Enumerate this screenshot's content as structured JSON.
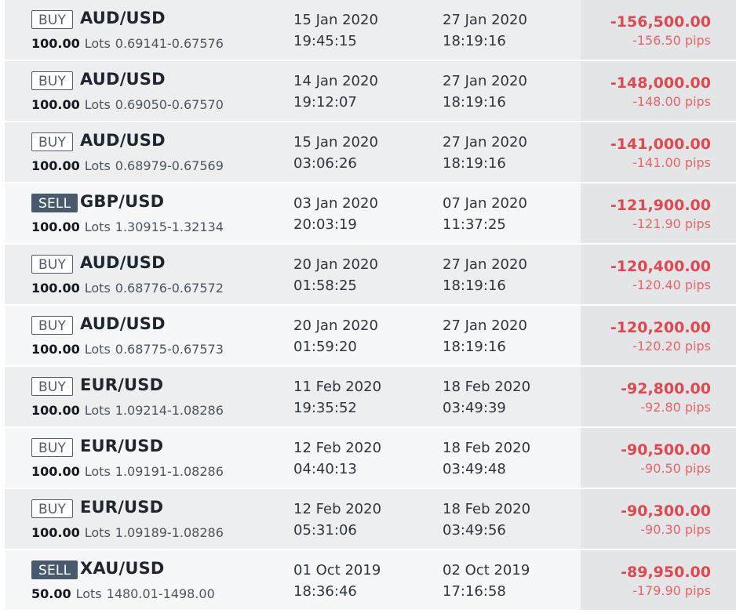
{
  "trades": [
    {
      "side": "BUY",
      "symbol": "AUD/USD",
      "lots": "100.00",
      "lots_unit": "Lots",
      "range": "0.69141-0.67576",
      "open_date": "15 Jan 2020",
      "open_time": "19:45:15",
      "close_date": "27 Jan 2020",
      "close_time": "18:19:16",
      "profit": "-156,500.00",
      "pips": "-156.50 pips"
    },
    {
      "side": "BUY",
      "symbol": "AUD/USD",
      "lots": "100.00",
      "lots_unit": "Lots",
      "range": "0.69050-0.67570",
      "open_date": "14 Jan 2020",
      "open_time": "19:12:07",
      "close_date": "27 Jan 2020",
      "close_time": "18:19:16",
      "profit": "-148,000.00",
      "pips": "-148.00 pips"
    },
    {
      "side": "BUY",
      "symbol": "AUD/USD",
      "lots": "100.00",
      "lots_unit": "Lots",
      "range": "0.68979-0.67569",
      "open_date": "15 Jan 2020",
      "open_time": "03:06:26",
      "close_date": "27 Jan 2020",
      "close_time": "18:19:16",
      "profit": "-141,000.00",
      "pips": "-141.00 pips"
    },
    {
      "side": "SELL",
      "symbol": "GBP/USD",
      "lots": "100.00",
      "lots_unit": "Lots",
      "range": "1.30915-1.32134",
      "open_date": "03 Jan 2020",
      "open_time": "20:03:19",
      "close_date": "07 Jan 2020",
      "close_time": "11:37:25",
      "profit": "-121,900.00",
      "pips": "-121.90 pips"
    },
    {
      "side": "BUY",
      "symbol": "AUD/USD",
      "lots": "100.00",
      "lots_unit": "Lots",
      "range": "0.68776-0.67572",
      "open_date": "20 Jan 2020",
      "open_time": "01:58:25",
      "close_date": "27 Jan 2020",
      "close_time": "18:19:16",
      "profit": "-120,400.00",
      "pips": "-120.40 pips"
    },
    {
      "side": "BUY",
      "symbol": "AUD/USD",
      "lots": "100.00",
      "lots_unit": "Lots",
      "range": "0.68775-0.67573",
      "open_date": "20 Jan 2020",
      "open_time": "01:59:20",
      "close_date": "27 Jan 2020",
      "close_time": "18:19:16",
      "profit": "-120,200.00",
      "pips": "-120.20 pips"
    },
    {
      "side": "BUY",
      "symbol": "EUR/USD",
      "lots": "100.00",
      "lots_unit": "Lots",
      "range": "1.09214-1.08286",
      "open_date": "11 Feb 2020",
      "open_time": "19:35:52",
      "close_date": "18 Feb 2020",
      "close_time": "03:49:39",
      "profit": "-92,800.00",
      "pips": "-92.80 pips"
    },
    {
      "side": "BUY",
      "symbol": "EUR/USD",
      "lots": "100.00",
      "lots_unit": "Lots",
      "range": "1.09191-1.08286",
      "open_date": "12 Feb 2020",
      "open_time": "04:40:13",
      "close_date": "18 Feb 2020",
      "close_time": "03:49:48",
      "profit": "-90,500.00",
      "pips": "-90.50 pips"
    },
    {
      "side": "BUY",
      "symbol": "EUR/USD",
      "lots": "100.00",
      "lots_unit": "Lots",
      "range": "1.09189-1.08286",
      "open_date": "12 Feb 2020",
      "open_time": "05:31:06",
      "close_date": "18 Feb 2020",
      "close_time": "03:49:56",
      "profit": "-90,300.00",
      "pips": "-90.30 pips"
    },
    {
      "side": "SELL",
      "symbol": "XAU/USD",
      "lots": "50.00",
      "lots_unit": "Lots",
      "range": "1480.01-1498.00",
      "open_date": "01 Oct 2019",
      "open_time": "18:36:46",
      "close_date": "02 Oct 2019",
      "close_time": "17:16:58",
      "profit": "-89,950.00",
      "pips": "-179.90 pips"
    }
  ],
  "colors": {
    "loss": "#e0484f",
    "sell_badge": "#4a5a6e",
    "result_cell": "#e4e5e6"
  }
}
